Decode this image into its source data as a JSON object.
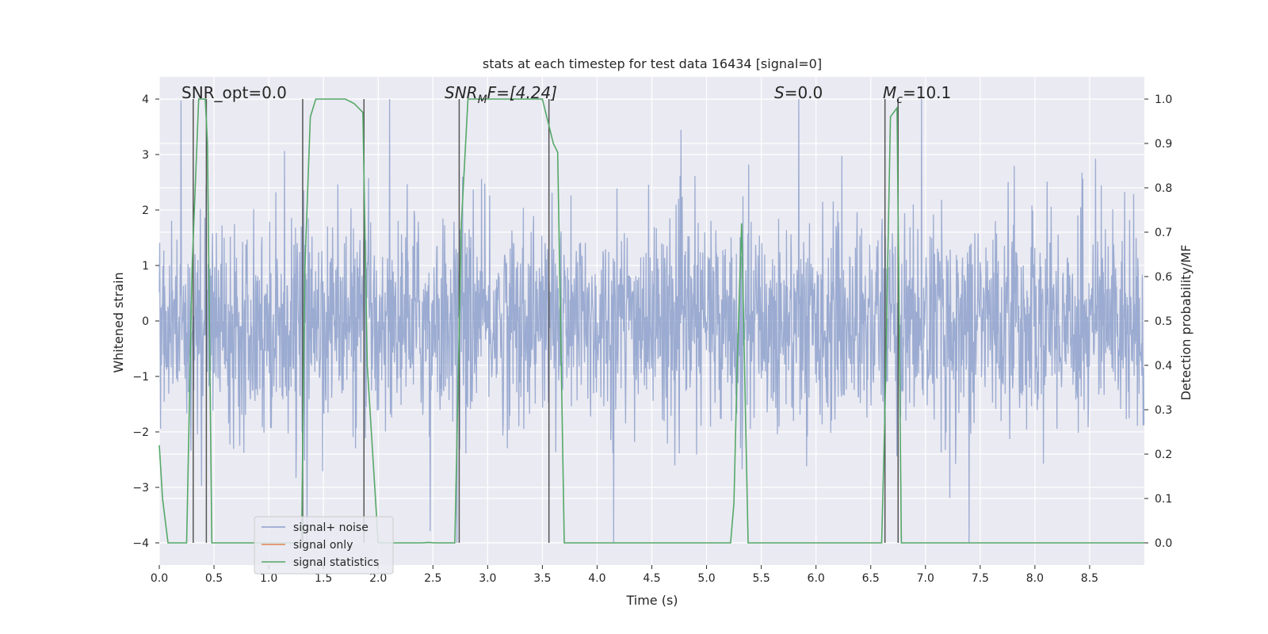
{
  "chart_data": {
    "type": "line",
    "title": "stats at each timestep for test data 16434 [signal=0]",
    "xlabel": "Time (s)",
    "ylabel": "Whitened strain",
    "ylabel_right": "Detection probability/MF",
    "xlim": [
      0.0,
      9.0
    ],
    "ylim": [
      -4.4,
      4.4
    ],
    "ylim_right": [
      -0.05,
      1.05
    ],
    "x_ticks": [
      "0.0",
      "0.5",
      "1.0",
      "1.5",
      "2.0",
      "2.5",
      "3.0",
      "3.5",
      "4.0",
      "4.5",
      "5.0",
      "5.5",
      "6.0",
      "6.5",
      "7.0",
      "7.5",
      "8.0",
      "8.5"
    ],
    "y_ticks": [
      "4",
      "3",
      "2",
      "1",
      "0",
      "−1",
      "−2",
      "−3",
      "−4"
    ],
    "y_ticks_right": [
      "1.0",
      "0.9",
      "0.8",
      "0.7",
      "0.6",
      "0.5",
      "0.4",
      "0.3",
      "0.2",
      "0.1",
      "0.0"
    ],
    "grid": true,
    "legend": {
      "placement": "lower-left",
      "entries": [
        {
          "label": "signal+ noise",
          "color": "#8da0cb"
        },
        {
          "label": "signal only",
          "color": "#dd8452"
        },
        {
          "label": "signal statistics",
          "color": "#55a868"
        }
      ]
    },
    "annotations": {
      "snr_opt": "SNR_opt=0.0",
      "snr_mf_main": "SNR",
      "snr_mf_sub": "M",
      "snr_mf_tail": "F=[4.24]",
      "s_main": "S",
      "s_tail": "=0.0",
      "mc_main": "M",
      "mc_sub": "c",
      "mc_tail": "=10.1"
    },
    "vertical_lines_x": [
      0.31,
      0.43,
      1.31,
      1.87,
      2.74,
      3.56,
      6.63,
      6.75
    ],
    "series": [
      {
        "name": "signal statistics",
        "color": "#55a868",
        "x": [
          0.0,
          0.03,
          0.08,
          0.2,
          0.25,
          0.3,
          0.36,
          0.42,
          0.44,
          0.48,
          0.52,
          1.0,
          1.3,
          1.33,
          1.38,
          1.43,
          1.6,
          1.7,
          1.78,
          1.86,
          1.9,
          2.0,
          2.1,
          2.4,
          2.46,
          2.52,
          2.7,
          2.76,
          2.82,
          3.5,
          3.6,
          3.64,
          3.7,
          3.8,
          5.22,
          5.25,
          5.28,
          5.32,
          5.38,
          5.45,
          6.6,
          6.63,
          6.68,
          6.74,
          6.78,
          7.0,
          9.0
        ],
        "y": [
          0.22,
          0.1,
          0.0,
          0.0,
          0.0,
          0.62,
          1.0,
          1.0,
          0.9,
          0.0,
          0.0,
          0.0,
          0.0,
          0.62,
          0.96,
          1.0,
          1.0,
          1.0,
          0.99,
          0.97,
          0.4,
          0.0,
          0.0,
          0.0,
          0.001,
          0.0,
          0.0,
          0.72,
          1.0,
          1.0,
          0.9,
          0.88,
          0.0,
          0.0,
          0.0,
          0.09,
          0.4,
          0.72,
          0.0,
          0.0,
          0.0,
          0.3,
          0.96,
          0.98,
          0.0,
          0.0,
          0.0
        ]
      }
    ]
  }
}
